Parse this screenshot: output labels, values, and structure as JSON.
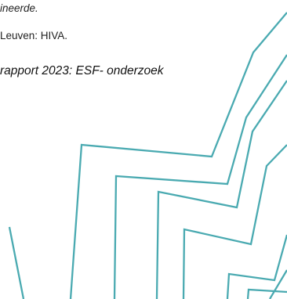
{
  "document": {
    "citation_fragment_1": "ineerde.",
    "citation_fragment_2": "Leuven: HIVA.",
    "citation_fragment_3": "rapport 2023: ESF- onderzoek"
  },
  "decoration": {
    "stroke_color": "#4aaab1"
  }
}
